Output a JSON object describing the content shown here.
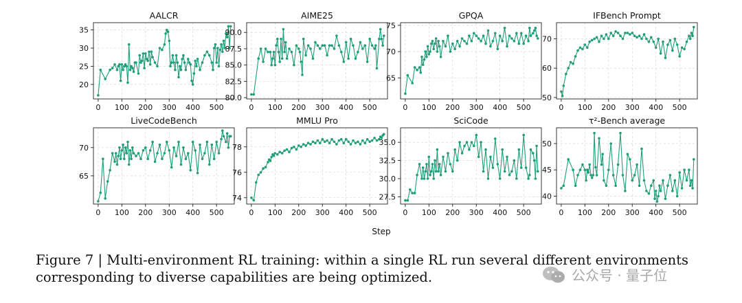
{
  "figure": {
    "xlabel": "Step",
    "caption_line1": "Figure 7 | Multi-environment RL training: within a single RL run several different environments",
    "caption_line2": "corresponding to diverse capabilities are being optimized.",
    "watermark": "公众号 · 量子位",
    "series_color": "#1f9e77"
  },
  "chart_data": [
    {
      "type": "line",
      "title": "AALCR",
      "xlim": [
        -20,
        575
      ],
      "ylim": [
        16,
        37
      ],
      "xticks": [
        0,
        100,
        200,
        300,
        400,
        500
      ],
      "yticks": [
        20,
        25,
        30,
        35
      ],
      "x": [
        0,
        10,
        30,
        50,
        60,
        70,
        80,
        85,
        90,
        95,
        100,
        105,
        110,
        115,
        120,
        125,
        130,
        135,
        140,
        145,
        150,
        155,
        160,
        170,
        175,
        180,
        185,
        190,
        195,
        200,
        205,
        210,
        215,
        220,
        225,
        230,
        240,
        250,
        260,
        270,
        280,
        285,
        290,
        295,
        300,
        305,
        310,
        315,
        320,
        325,
        330,
        335,
        340,
        345,
        350,
        355,
        360,
        365,
        370,
        380,
        385,
        390,
        395,
        400,
        405,
        410,
        415,
        420,
        430,
        440,
        450,
        460,
        470,
        480,
        485,
        490,
        495,
        500,
        505,
        510,
        515,
        520,
        525,
        530,
        535,
        540,
        545,
        550,
        555,
        560
      ],
      "y": [
        17,
        24,
        21.5,
        24,
        24.5,
        25.5,
        24,
        25,
        25.5,
        21,
        25.5,
        24,
        25,
        25.5,
        25,
        20.5,
        31,
        24,
        25,
        24.5,
        23.5,
        26,
        26,
        23,
        28,
        26,
        26.5,
        28.5,
        24.5,
        28.5,
        27,
        26.5,
        29,
        25.5,
        29,
        27.5,
        26,
        25,
        30,
        29.5,
        31,
        34,
        35,
        34.5,
        32,
        25,
        26,
        28,
        26,
        24,
        28,
        26,
        22,
        25,
        24,
        27,
        28,
        26,
        24,
        27,
        26,
        25.5,
        21,
        20,
        23,
        26.5,
        25,
        27,
        24,
        26,
        28,
        29,
        28,
        26,
        24,
        30,
        31,
        26,
        30,
        25,
        29.5,
        31,
        29,
        32,
        30,
        34,
        33,
        36,
        30,
        36
      ]
    },
    {
      "type": "line",
      "title": "AIME25",
      "xlim": [
        -20,
        575
      ],
      "ylim": [
        79.8,
        91.5
      ],
      "xticks": [
        0,
        100,
        200,
        300,
        400,
        500
      ],
      "yticks": [
        80.0,
        82.5,
        85.0,
        87.5,
        90.0
      ],
      "x": [
        0,
        10,
        30,
        40,
        50,
        60,
        70,
        80,
        85,
        90,
        95,
        100,
        105,
        110,
        115,
        120,
        125,
        130,
        135,
        140,
        145,
        150,
        160,
        170,
        180,
        190,
        200,
        205,
        210,
        215,
        220,
        230,
        240,
        250,
        260,
        270,
        280,
        290,
        300,
        310,
        320,
        330,
        340,
        350,
        360,
        370,
        380,
        390,
        400,
        410,
        420,
        430,
        440,
        450,
        460,
        470,
        480,
        490,
        500,
        510,
        520,
        525,
        530,
        540,
        545,
        550,
        555,
        560
      ],
      "y": [
        80.5,
        80.5,
        86,
        87.5,
        85.5,
        87.5,
        87,
        87,
        85,
        86,
        87,
        85,
        88,
        89,
        87,
        85.5,
        89,
        86,
        90.5,
        87,
        88.5,
        86,
        87.5,
        87,
        85,
        88,
        87.5,
        87,
        85.5,
        83.5,
        89,
        86.5,
        88,
        87.5,
        86,
        88.5,
        88,
        87.5,
        88,
        88,
        86.5,
        88,
        88,
        87.5,
        89.5,
        88,
        87,
        85.5,
        88.5,
        86,
        89,
        88,
        86,
        87,
        88.5,
        87.5,
        88,
        85.5,
        89,
        88,
        87.5,
        88,
        84.5,
        89,
        90.5,
        89,
        88,
        89.5
      ]
    },
    {
      "type": "line",
      "title": "GPQA",
      "xlim": [
        -20,
        575
      ],
      "ylim": [
        61,
        75.5
      ],
      "xticks": [
        0,
        100,
        200,
        300,
        400,
        500
      ],
      "yticks": [
        65,
        70,
        75
      ],
      "x": [
        0,
        10,
        30,
        40,
        50,
        60,
        65,
        70,
        75,
        80,
        85,
        90,
        95,
        100,
        105,
        110,
        115,
        120,
        125,
        130,
        135,
        140,
        145,
        150,
        160,
        170,
        180,
        190,
        200,
        210,
        220,
        230,
        240,
        250,
        260,
        270,
        280,
        290,
        300,
        310,
        320,
        330,
        340,
        350,
        360,
        370,
        380,
        390,
        400,
        410,
        420,
        430,
        440,
        450,
        460,
        470,
        480,
        490,
        500,
        510,
        520,
        525,
        530,
        540,
        545,
        550,
        555,
        560
      ],
      "y": [
        62,
        65.5,
        64,
        67,
        66.5,
        67,
        66,
        69,
        67.5,
        68.5,
        70,
        69,
        71,
        69.5,
        70,
        71.5,
        72,
        70.5,
        71.5,
        72.5,
        70,
        72,
        71,
        69,
        72,
        71,
        73,
        70,
        71.5,
        70.5,
        72,
        71,
        72.5,
        72,
        71.5,
        73,
        72,
        73.5,
        73,
        72.5,
        72,
        73,
        71.5,
        74,
        71,
        72,
        73.5,
        70.5,
        73,
        72,
        74.5,
        71,
        73,
        72.5,
        72,
        73.5,
        71.5,
        73.5,
        71.5,
        73,
        72,
        74.5,
        73,
        73.5,
        74,
        74.5,
        73,
        72.5
      ]
    },
    {
      "type": "line",
      "title": "IFBench Prompt",
      "xlim": [
        -20,
        575
      ],
      "ylim": [
        49.5,
        75.5
      ],
      "xticks": [
        0,
        100,
        200,
        300,
        400,
        500
      ],
      "yticks": [
        50,
        60,
        70
      ],
      "x": [
        0,
        5,
        10,
        20,
        30,
        40,
        50,
        60,
        70,
        80,
        90,
        100,
        110,
        120,
        130,
        140,
        150,
        160,
        170,
        180,
        190,
        200,
        210,
        220,
        230,
        240,
        250,
        260,
        270,
        280,
        290,
        300,
        310,
        320,
        330,
        340,
        350,
        360,
        370,
        380,
        390,
        400,
        410,
        420,
        430,
        440,
        450,
        460,
        470,
        480,
        490,
        500,
        510,
        520,
        530,
        540,
        545,
        550,
        555,
        560
      ],
      "y": [
        52,
        50.5,
        54,
        58,
        60,
        62,
        61.5,
        64,
        66,
        67,
        66.5,
        68,
        67,
        69,
        69.5,
        70,
        70.5,
        69,
        71,
        70,
        71.5,
        70,
        72,
        71,
        72.5,
        72,
        71,
        70,
        72,
        72,
        71.5,
        72,
        71,
        70.5,
        71,
        70,
        71.5,
        70,
        69,
        70.5,
        69,
        67,
        70,
        65,
        69,
        63.5,
        68,
        69.5,
        66,
        70,
        68,
        64,
        67,
        66.5,
        69,
        71,
        70,
        72,
        71,
        74
      ]
    },
    {
      "type": "line",
      "title": "LiveCodeBench",
      "xlim": [
        -20,
        575
      ],
      "ylim": [
        60,
        73.5
      ],
      "xticks": [
        0,
        100,
        200,
        300,
        400,
        500
      ],
      "yticks": [
        65,
        70
      ],
      "x": [
        0,
        10,
        20,
        30,
        40,
        50,
        60,
        70,
        75,
        80,
        85,
        90,
        95,
        100,
        105,
        110,
        115,
        120,
        125,
        130,
        135,
        140,
        145,
        150,
        160,
        170,
        180,
        190,
        200,
        210,
        220,
        230,
        240,
        250,
        260,
        270,
        280,
        290,
        300,
        310,
        320,
        330,
        340,
        350,
        360,
        370,
        380,
        390,
        400,
        410,
        420,
        430,
        440,
        450,
        460,
        470,
        480,
        490,
        500,
        510,
        520,
        525,
        530,
        540,
        545,
        550,
        555,
        560
      ],
      "y": [
        60.5,
        62,
        68,
        61,
        64,
        66,
        69,
        67.5,
        69,
        67,
        68.5,
        70,
        68,
        69.5,
        70.5,
        68,
        70,
        69,
        71,
        67,
        69.5,
        68,
        70,
        69,
        68.5,
        69,
        68,
        69.5,
        70,
        68,
        69.5,
        71,
        67.5,
        69,
        70.5,
        68,
        69,
        71,
        69.5,
        66.5,
        70,
        68.5,
        71,
        67,
        70,
        68,
        69,
        66,
        71,
        69.5,
        65.5,
        70.5,
        68,
        69,
        71,
        67,
        70.5,
        68,
        71,
        69,
        71.5,
        73,
        72,
        71,
        72.5,
        70,
        72,
        72
      ]
    },
    {
      "type": "line",
      "title": "MMLU Pro",
      "xlim": [
        -20,
        575
      ],
      "ylim": [
        73.5,
        79.5
      ],
      "xticks": [
        0,
        100,
        200,
        300,
        400,
        500
      ],
      "yticks": [
        74,
        76,
        78
      ],
      "x": [
        0,
        10,
        20,
        30,
        40,
        50,
        60,
        70,
        75,
        80,
        85,
        90,
        95,
        100,
        110,
        120,
        130,
        140,
        150,
        160,
        170,
        180,
        190,
        200,
        210,
        220,
        230,
        240,
        250,
        260,
        270,
        280,
        290,
        300,
        310,
        320,
        330,
        340,
        350,
        360,
        370,
        380,
        390,
        400,
        410,
        420,
        430,
        440,
        450,
        460,
        470,
        480,
        490,
        500,
        510,
        520,
        530,
        540,
        545,
        550,
        555,
        560
      ],
      "y": [
        74,
        73.8,
        75.2,
        75.8,
        76,
        76.3,
        76.4,
        76.8,
        77,
        76.9,
        77.2,
        77.4,
        77.3,
        77.5,
        77.4,
        77.6,
        77.5,
        77.7,
        77.8,
        77.6,
        77.9,
        78,
        77.8,
        78.1,
        78,
        78.2,
        78.1,
        78.3,
        78.2,
        78.4,
        78.3,
        78.5,
        78.3,
        78.6,
        78.4,
        78.5,
        78.3,
        78.6,
        78.4,
        78.2,
        78.5,
        78.6,
        78.3,
        78.6,
        78.4,
        78.2,
        78.5,
        78.3,
        78.4,
        78.2,
        78.5,
        78.3,
        78.6,
        78.4,
        78.5,
        78.7,
        78.5,
        78.6,
        78.8,
        78.7,
        78.9,
        79
      ]
    },
    {
      "type": "line",
      "title": "SciCode",
      "xlim": [
        -20,
        575
      ],
      "ylim": [
        26.5,
        37
      ],
      "xticks": [
        0,
        100,
        200,
        300,
        400,
        500
      ],
      "yticks": [
        27.5,
        30.0,
        32.5,
        35.0
      ],
      "x": [
        0,
        10,
        20,
        30,
        40,
        50,
        60,
        70,
        75,
        80,
        85,
        90,
        95,
        100,
        105,
        110,
        115,
        120,
        125,
        130,
        135,
        140,
        145,
        150,
        160,
        170,
        180,
        190,
        200,
        210,
        220,
        230,
        240,
        250,
        260,
        270,
        280,
        290,
        300,
        310,
        320,
        330,
        340,
        350,
        360,
        370,
        380,
        390,
        400,
        410,
        420,
        430,
        440,
        450,
        460,
        470,
        480,
        490,
        500,
        510,
        520,
        525,
        530,
        540,
        545,
        550,
        555,
        560
      ],
      "y": [
        27,
        27,
        28.5,
        28,
        28,
        30.5,
        32,
        30,
        31.5,
        30,
        31,
        32,
        30,
        33,
        30.5,
        31,
        32,
        30,
        32.5,
        31,
        34,
        31,
        32,
        30.5,
        33,
        31,
        33.5,
        32,
        31,
        34,
        32.5,
        35,
        33.5,
        34.5,
        35,
        34,
        35,
        34.5,
        36,
        33,
        35,
        31,
        34,
        30,
        33,
        31.5,
        35.5,
        32,
        30,
        34,
        31,
        33,
        30.5,
        31,
        32.5,
        30,
        34,
        31.5,
        36,
        31.5,
        30,
        30.5,
        34,
        33.5,
        32.5,
        30,
        34.5,
        31
      ]
    },
    {
      "type": "line",
      "title": "τ²-Bench average",
      "xlim": [
        -20,
        575
      ],
      "ylim": [
        38.5,
        53
      ],
      "xticks": [
        0,
        100,
        200,
        300,
        400,
        500
      ],
      "yticks": [
        40,
        45,
        50
      ],
      "x": [
        0,
        10,
        30,
        50,
        60,
        70,
        80,
        90,
        100,
        105,
        110,
        115,
        120,
        125,
        130,
        135,
        140,
        145,
        150,
        160,
        170,
        175,
        180,
        190,
        200,
        210,
        220,
        230,
        240,
        250,
        260,
        270,
        280,
        290,
        300,
        310,
        320,
        330,
        340,
        350,
        360,
        370,
        380,
        390,
        395,
        400,
        405,
        410,
        415,
        420,
        430,
        440,
        450,
        460,
        470,
        480,
        490,
        500,
        510,
        520,
        530,
        540,
        545,
        550,
        555,
        560
      ],
      "y": [
        41.5,
        42,
        47,
        45,
        42,
        44,
        45,
        46,
        45,
        43,
        45,
        44.5,
        46,
        44,
        43.5,
        44,
        52,
        45.5,
        44,
        51,
        46,
        48,
        43,
        42,
        45,
        50,
        44,
        42,
        46,
        52,
        44,
        41,
        48,
        47,
        43,
        44,
        46,
        42,
        49,
        43,
        41,
        40.5,
        42,
        43,
        39.5,
        41,
        39,
        40,
        42,
        41,
        43,
        39.5,
        42,
        44,
        41,
        43,
        40,
        44.5,
        41.5,
        45,
        43,
        45,
        42,
        43,
        41.5,
        47
      ]
    }
  ]
}
